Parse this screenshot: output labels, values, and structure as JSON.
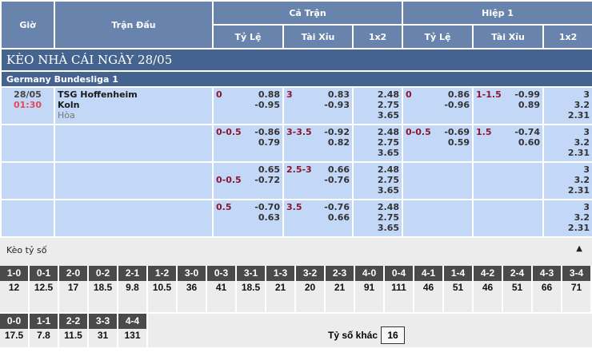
{
  "header": {
    "time": "Giờ",
    "match": "Trận Đấu",
    "full": "Cả Trận",
    "half": "Hiệp 1",
    "hcap": "Tỷ Lệ",
    "ou": "Tài Xỉu",
    "x12": "1x2"
  },
  "banner": "KÈO NHÀ CÁI NGÀY 28/05",
  "league": "Germany Bundesliga 1",
  "match": {
    "date": "28/05",
    "time": "01:30",
    "home": "TSG Hoffenheim",
    "away": "Koln",
    "draw": "Hòa"
  },
  "rows": [
    {
      "ft_h": "0",
      "ft_hv": [
        "0.88",
        "-0.95"
      ],
      "ft_o": "3",
      "ft_ov": [
        "0.83",
        "-0.93"
      ],
      "ft_x": [
        "2.48",
        "2.75",
        "3.65"
      ],
      "h1_h": "0",
      "h1_hv": [
        "0.86",
        "-0.96"
      ],
      "h1_o": "1-1.5",
      "h1_ov": [
        "-0.99",
        "0.89"
      ],
      "h1_x": [
        "3",
        "3.2",
        "2.31"
      ]
    },
    {
      "ft_h": "0-0.5",
      "ft_hv": [
        "-0.86",
        "0.79"
      ],
      "ft_o": "3-3.5",
      "ft_ov": [
        "-0.92",
        "0.82"
      ],
      "ft_x": [
        "2.48",
        "2.75",
        "3.65"
      ],
      "h1_h": "0-0.5",
      "h1_hv": [
        "-0.69",
        "0.59"
      ],
      "h1_o": "1.5",
      "h1_ov": [
        "-0.74",
        "0.60"
      ],
      "h1_x": [
        "3",
        "3.2",
        "2.31"
      ]
    },
    {
      "ft_h": "",
      "ft_h2": "0-0.5",
      "ft_hv": [
        "0.65",
        "-0.72"
      ],
      "ft_o": "2.5-3",
      "ft_ov": [
        "0.66",
        "-0.76"
      ],
      "ft_x": [
        "2.48",
        "2.75",
        "3.65"
      ],
      "h1_h": "",
      "h1_hv": [
        "",
        ""
      ],
      "h1_o": "",
      "h1_ov": [
        "",
        ""
      ],
      "h1_x": [
        "3",
        "3.2",
        "2.31"
      ]
    },
    {
      "ft_h": "0.5",
      "ft_hv": [
        "-0.70",
        "0.63"
      ],
      "ft_o": "3.5",
      "ft_ov": [
        "-0.76",
        "0.66"
      ],
      "ft_x": [
        "2.48",
        "2.75",
        "3.65"
      ],
      "h1_h": "",
      "h1_hv": [
        "",
        ""
      ],
      "h1_o": "",
      "h1_ov": [
        "",
        ""
      ],
      "h1_x": [
        "3",
        "3.2",
        "2.31"
      ]
    }
  ],
  "correct_score": {
    "title": "Kèo tỷ số",
    "toggle_icon": "triangle-up-icon",
    "row1": [
      [
        "1-0",
        "12"
      ],
      [
        "0-1",
        "12.5"
      ],
      [
        "2-0",
        "17"
      ],
      [
        "0-2",
        "18.5"
      ],
      [
        "2-1",
        "9.8"
      ],
      [
        "1-2",
        "10.5"
      ],
      [
        "3-0",
        "36"
      ],
      [
        "0-3",
        "41"
      ],
      [
        "3-1",
        "18.5"
      ],
      [
        "1-3",
        "21"
      ],
      [
        "3-2",
        "20"
      ],
      [
        "2-3",
        "21"
      ],
      [
        "4-0",
        "91"
      ],
      [
        "0-4",
        "111"
      ],
      [
        "4-1",
        "46"
      ],
      [
        "1-4",
        "51"
      ],
      [
        "4-2",
        "46"
      ],
      [
        "2-4",
        "51"
      ],
      [
        "4-3",
        "66"
      ],
      [
        "3-4",
        "71"
      ]
    ],
    "row2": [
      [
        "0-0",
        "17.5"
      ],
      [
        "1-1",
        "7.8"
      ],
      [
        "2-2",
        "11.5"
      ],
      [
        "3-3",
        "31"
      ],
      [
        "4-4",
        "131"
      ]
    ],
    "other_label": "Tỷ số khác",
    "other_value": "16"
  }
}
